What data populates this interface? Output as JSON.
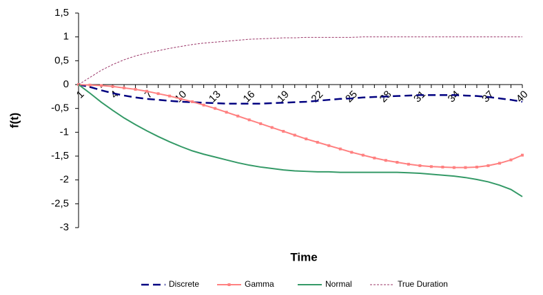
{
  "chart_data": {
    "type": "line",
    "x_label": "Time",
    "y_label": "f(t)",
    "categories": [
      1,
      null,
      null,
      4,
      null,
      null,
      7,
      null,
      null,
      10,
      null,
      null,
      13,
      null,
      null,
      16,
      null,
      null,
      19,
      null,
      null,
      22,
      null,
      null,
      25,
      null,
      null,
      28,
      null,
      null,
      31,
      null,
      null,
      34,
      null,
      null,
      37,
      null,
      null,
      40
    ],
    "ylim": [
      -3,
      1.5
    ],
    "yticks": [
      -3,
      {
        "value": -2.5,
        "label": "-2,5"
      },
      -2,
      {
        "value": -1.5,
        "label": "-1,5"
      },
      -1,
      {
        "value": -0.5,
        "label": "-0,5"
      },
      0,
      {
        "value": 0.5,
        "label": "0,5"
      },
      1,
      {
        "value": 1.5,
        "label": "1,5"
      }
    ],
    "legend": "bottom",
    "series": [
      {
        "name": "Discrete",
        "color": "#000080",
        "line_style": "dashed",
        "marker": "none",
        "values": [
          0,
          -0.05,
          -0.12,
          -0.18,
          -0.23,
          -0.27,
          -0.3,
          -0.32,
          -0.34,
          -0.36,
          -0.37,
          -0.38,
          -0.39,
          -0.4,
          -0.4,
          -0.4,
          -0.4,
          -0.39,
          -0.38,
          -0.37,
          -0.36,
          -0.34,
          -0.32,
          -0.3,
          -0.29,
          -0.27,
          -0.26,
          -0.25,
          -0.24,
          -0.23,
          -0.22,
          -0.22,
          -0.22,
          -0.22,
          -0.23,
          -0.24,
          -0.26,
          -0.29,
          -0.32,
          -0.36
        ]
      },
      {
        "name": "Gamma",
        "color": "#ff8080",
        "line_style": "solid",
        "marker": "square",
        "values": [
          0,
          -0.01,
          -0.02,
          -0.04,
          -0.07,
          -0.1,
          -0.14,
          -0.19,
          -0.24,
          -0.3,
          -0.36,
          -0.43,
          -0.5,
          -0.58,
          -0.66,
          -0.74,
          -0.82,
          -0.9,
          -0.98,
          -1.06,
          -1.14,
          -1.21,
          -1.28,
          -1.35,
          -1.42,
          -1.48,
          -1.54,
          -1.59,
          -1.63,
          -1.67,
          -1.7,
          -1.72,
          -1.73,
          -1.74,
          -1.74,
          -1.73,
          -1.7,
          -1.65,
          -1.58,
          -1.48
        ]
      },
      {
        "name": "Normal",
        "color": "#339966",
        "line_style": "solid",
        "marker": "none",
        "values": [
          0,
          -0.18,
          -0.37,
          -0.54,
          -0.7,
          -0.84,
          -0.97,
          -1.09,
          -1.2,
          -1.3,
          -1.39,
          -1.46,
          -1.52,
          -1.58,
          -1.64,
          -1.69,
          -1.73,
          -1.76,
          -1.79,
          -1.81,
          -1.82,
          -1.83,
          -1.83,
          -1.84,
          -1.84,
          -1.84,
          -1.84,
          -1.84,
          -1.84,
          -1.85,
          -1.86,
          -1.88,
          -1.9,
          -1.92,
          -1.95,
          -1.99,
          -2.04,
          -2.11,
          -2.2,
          -2.35
        ]
      },
      {
        "name": "True Duration",
        "color": "#993366",
        "line_style": "dotted",
        "marker": "none",
        "values": [
          0,
          0.15,
          0.3,
          0.42,
          0.52,
          0.6,
          0.66,
          0.71,
          0.76,
          0.8,
          0.84,
          0.87,
          0.89,
          0.91,
          0.93,
          0.95,
          0.96,
          0.97,
          0.98,
          0.98,
          0.99,
          0.99,
          0.99,
          0.99,
          0.99,
          1,
          1,
          1,
          1,
          1,
          1,
          1,
          1,
          1,
          1,
          1,
          1,
          1,
          1,
          1
        ]
      }
    ]
  }
}
